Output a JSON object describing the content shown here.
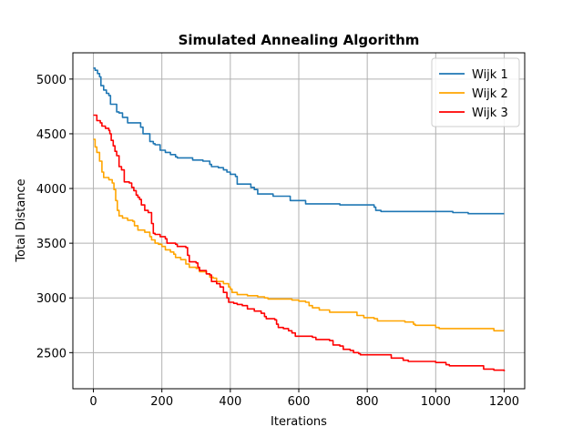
{
  "chart_data": {
    "type": "line",
    "title": "Simulated Annealing Algorithm",
    "xlabel": "Iterations",
    "ylabel": "Total Distance",
    "xlim": [
      -60,
      1260
    ],
    "ylim": [
      2170,
      5240
    ],
    "xticks": [
      0,
      200,
      400,
      600,
      800,
      1000,
      1200
    ],
    "yticks": [
      2500,
      3000,
      3500,
      4000,
      4500,
      5000
    ],
    "grid": true,
    "legend_position": "top-right",
    "series": [
      {
        "name": "Wijk 1",
        "color": "#1f77b4",
        "points": [
          [
            0,
            5100
          ],
          [
            5,
            5080
          ],
          [
            12,
            5050
          ],
          [
            18,
            5020
          ],
          [
            22,
            4940
          ],
          [
            30,
            4900
          ],
          [
            38,
            4870
          ],
          [
            45,
            4850
          ],
          [
            50,
            4770
          ],
          [
            65,
            4770
          ],
          [
            68,
            4700
          ],
          [
            75,
            4690
          ],
          [
            85,
            4650
          ],
          [
            100,
            4600
          ],
          [
            125,
            4600
          ],
          [
            138,
            4560
          ],
          [
            145,
            4500
          ],
          [
            160,
            4500
          ],
          [
            165,
            4430
          ],
          [
            175,
            4410
          ],
          [
            180,
            4400
          ],
          [
            195,
            4350
          ],
          [
            210,
            4330
          ],
          [
            225,
            4310
          ],
          [
            240,
            4290
          ],
          [
            245,
            4280
          ],
          [
            285,
            4280
          ],
          [
            290,
            4260
          ],
          [
            320,
            4250
          ],
          [
            340,
            4220
          ],
          [
            345,
            4200
          ],
          [
            365,
            4190
          ],
          [
            380,
            4170
          ],
          [
            390,
            4150
          ],
          [
            400,
            4130
          ],
          [
            415,
            4110
          ],
          [
            420,
            4040
          ],
          [
            450,
            4040
          ],
          [
            460,
            4010
          ],
          [
            470,
            3990
          ],
          [
            480,
            3950
          ],
          [
            520,
            3950
          ],
          [
            525,
            3930
          ],
          [
            560,
            3930
          ],
          [
            575,
            3890
          ],
          [
            615,
            3890
          ],
          [
            620,
            3860
          ],
          [
            680,
            3860
          ],
          [
            720,
            3850
          ],
          [
            780,
            3850
          ],
          [
            805,
            3850
          ],
          [
            820,
            3830
          ],
          [
            825,
            3800
          ],
          [
            830,
            3800
          ],
          [
            840,
            3790
          ],
          [
            900,
            3790
          ],
          [
            920,
            3790
          ],
          [
            1000,
            3790
          ],
          [
            1020,
            3790
          ],
          [
            1050,
            3780
          ],
          [
            1090,
            3780
          ],
          [
            1095,
            3770
          ],
          [
            1200,
            3770
          ]
        ]
      },
      {
        "name": "Wijk 2",
        "color": "#ffa500",
        "points": [
          [
            0,
            4450
          ],
          [
            5,
            4380
          ],
          [
            10,
            4330
          ],
          [
            18,
            4250
          ],
          [
            25,
            4150
          ],
          [
            30,
            4100
          ],
          [
            45,
            4080
          ],
          [
            55,
            4050
          ],
          [
            60,
            3990
          ],
          [
            65,
            3890
          ],
          [
            70,
            3800
          ],
          [
            75,
            3750
          ],
          [
            85,
            3730
          ],
          [
            100,
            3710
          ],
          [
            115,
            3700
          ],
          [
            120,
            3660
          ],
          [
            130,
            3620
          ],
          [
            150,
            3600
          ],
          [
            165,
            3560
          ],
          [
            170,
            3530
          ],
          [
            180,
            3500
          ],
          [
            190,
            3490
          ],
          [
            200,
            3470
          ],
          [
            210,
            3440
          ],
          [
            225,
            3420
          ],
          [
            235,
            3400
          ],
          [
            240,
            3370
          ],
          [
            255,
            3350
          ],
          [
            270,
            3310
          ],
          [
            280,
            3280
          ],
          [
            300,
            3270
          ],
          [
            310,
            3240
          ],
          [
            330,
            3220
          ],
          [
            340,
            3190
          ],
          [
            350,
            3180
          ],
          [
            360,
            3150
          ],
          [
            380,
            3130
          ],
          [
            395,
            3100
          ],
          [
            400,
            3080
          ],
          [
            405,
            3050
          ],
          [
            420,
            3030
          ],
          [
            450,
            3020
          ],
          [
            480,
            3010
          ],
          [
            500,
            3000
          ],
          [
            510,
            2990
          ],
          [
            570,
            2990
          ],
          [
            580,
            2980
          ],
          [
            600,
            2970
          ],
          [
            620,
            2960
          ],
          [
            630,
            2930
          ],
          [
            640,
            2910
          ],
          [
            660,
            2890
          ],
          [
            690,
            2870
          ],
          [
            760,
            2870
          ],
          [
            770,
            2840
          ],
          [
            790,
            2820
          ],
          [
            820,
            2810
          ],
          [
            830,
            2790
          ],
          [
            890,
            2790
          ],
          [
            910,
            2780
          ],
          [
            935,
            2760
          ],
          [
            940,
            2750
          ],
          [
            990,
            2750
          ],
          [
            1000,
            2730
          ],
          [
            1010,
            2720
          ],
          [
            1100,
            2720
          ],
          [
            1160,
            2720
          ],
          [
            1170,
            2700
          ],
          [
            1200,
            2700
          ]
        ]
      },
      {
        "name": "Wijk 3",
        "color": "#ff0000",
        "points": [
          [
            0,
            4670
          ],
          [
            10,
            4620
          ],
          [
            20,
            4600
          ],
          [
            25,
            4570
          ],
          [
            35,
            4550
          ],
          [
            45,
            4530
          ],
          [
            48,
            4500
          ],
          [
            52,
            4440
          ],
          [
            58,
            4390
          ],
          [
            63,
            4340
          ],
          [
            68,
            4300
          ],
          [
            75,
            4200
          ],
          [
            82,
            4170
          ],
          [
            90,
            4060
          ],
          [
            105,
            4050
          ],
          [
            112,
            4010
          ],
          [
            118,
            3980
          ],
          [
            125,
            3940
          ],
          [
            130,
            3920
          ],
          [
            135,
            3900
          ],
          [
            140,
            3850
          ],
          [
            150,
            3800
          ],
          [
            160,
            3780
          ],
          [
            170,
            3680
          ],
          [
            175,
            3590
          ],
          [
            180,
            3580
          ],
          [
            195,
            3560
          ],
          [
            210,
            3540
          ],
          [
            215,
            3500
          ],
          [
            240,
            3490
          ],
          [
            245,
            3470
          ],
          [
            270,
            3460
          ],
          [
            275,
            3390
          ],
          [
            280,
            3330
          ],
          [
            300,
            3320
          ],
          [
            305,
            3280
          ],
          [
            310,
            3250
          ],
          [
            330,
            3220
          ],
          [
            340,
            3210
          ],
          [
            345,
            3150
          ],
          [
            360,
            3130
          ],
          [
            370,
            3100
          ],
          [
            380,
            3050
          ],
          [
            390,
            3000
          ],
          [
            395,
            2960
          ],
          [
            410,
            2950
          ],
          [
            420,
            2940
          ],
          [
            435,
            2930
          ],
          [
            450,
            2900
          ],
          [
            470,
            2880
          ],
          [
            490,
            2860
          ],
          [
            500,
            2830
          ],
          [
            505,
            2810
          ],
          [
            530,
            2800
          ],
          [
            535,
            2760
          ],
          [
            540,
            2730
          ],
          [
            555,
            2720
          ],
          [
            570,
            2700
          ],
          [
            580,
            2680
          ],
          [
            590,
            2650
          ],
          [
            640,
            2640
          ],
          [
            650,
            2620
          ],
          [
            690,
            2610
          ],
          [
            700,
            2570
          ],
          [
            720,
            2560
          ],
          [
            730,
            2530
          ],
          [
            750,
            2520
          ],
          [
            760,
            2500
          ],
          [
            775,
            2490
          ],
          [
            780,
            2480
          ],
          [
            850,
            2480
          ],
          [
            870,
            2450
          ],
          [
            900,
            2450
          ],
          [
            905,
            2430
          ],
          [
            920,
            2420
          ],
          [
            990,
            2420
          ],
          [
            1000,
            2410
          ],
          [
            1030,
            2390
          ],
          [
            1040,
            2380
          ],
          [
            1130,
            2380
          ],
          [
            1140,
            2350
          ],
          [
            1170,
            2340
          ],
          [
            1200,
            2330
          ]
        ]
      }
    ]
  }
}
